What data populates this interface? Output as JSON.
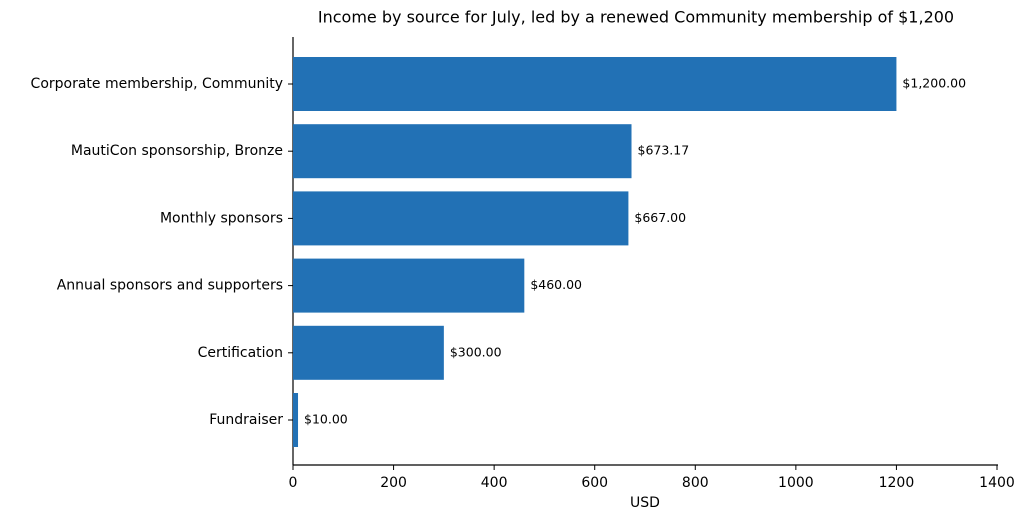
{
  "chart_data": {
    "type": "barh",
    "title": "Income by source for July, led by a renewed Community membership of $1,200",
    "x_label": "USD",
    "categories": [
      "Corporate membership, Community",
      "MautiCon sponsorship, Bronze",
      "Monthly sponsors",
      "Annual sponsors and supporters",
      "Certification",
      "Fundraiser"
    ],
    "values": [
      1200,
      673.17,
      667,
      460,
      300,
      10
    ],
    "value_labels": [
      "$1,200.00",
      "$673.17",
      "$667.00",
      "$460.00",
      "$300.00",
      "$10.00"
    ],
    "color": "#2271b5",
    "xlim": [
      0,
      1400
    ],
    "xticks": [
      0,
      200,
      400,
      600,
      800,
      1000,
      1200,
      1400
    ],
    "grid": false
  }
}
